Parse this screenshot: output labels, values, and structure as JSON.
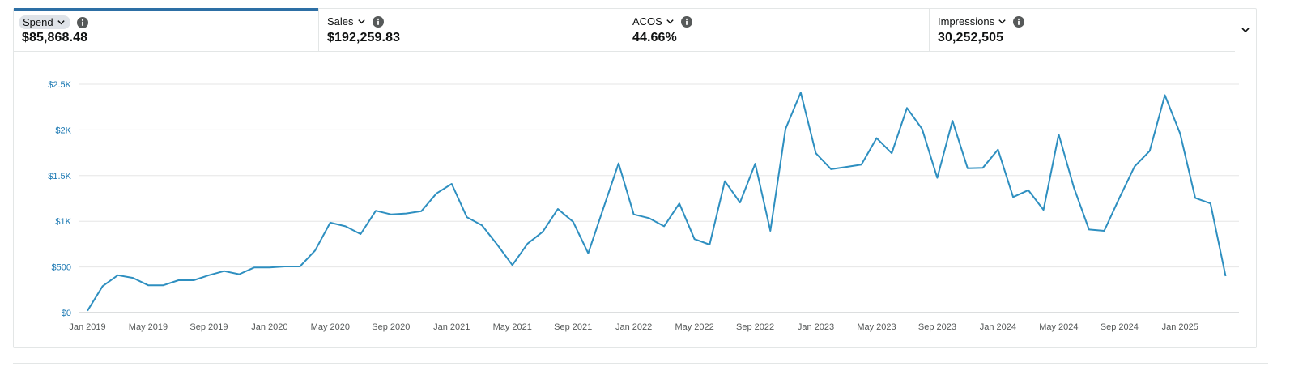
{
  "metrics": [
    {
      "label": "Spend",
      "value": "$85,868.48",
      "active": true
    },
    {
      "label": "Sales",
      "value": "$192,259.83",
      "active": false
    },
    {
      "label": "ACOS",
      "value": "44.66%",
      "active": false
    },
    {
      "label": "Impressions",
      "value": "30,252,505",
      "active": false
    }
  ],
  "icons": {
    "dropdown": "chevron-down-icon",
    "info": "info-icon",
    "expand": "chevron-down-icon"
  },
  "colors": {
    "line": "#2e8fc0",
    "active_tab": "#2d6fa5",
    "y_ticks": "#1c79b3",
    "grid": "#e6e6e6"
  },
  "chart_data": {
    "type": "line",
    "series": [
      {
        "x": [
          "2019-01",
          "2019-02",
          "2019-03",
          "2019-04",
          "2019-05",
          "2019-06",
          "2019-07",
          "2019-08",
          "2019-09",
          "2019-10",
          "2019-11",
          "2019-12",
          "2020-01",
          "2020-02",
          "2020-03",
          "2020-04",
          "2020-05",
          "2020-06",
          "2020-07",
          "2020-08",
          "2020-09",
          "2020-10",
          "2020-11",
          "2020-12",
          "2021-01",
          "2021-02",
          "2021-03",
          "2021-04",
          "2021-05",
          "2021-06",
          "2021-07",
          "2021-08",
          "2021-09",
          "2021-10",
          "2021-11",
          "2021-12",
          "2022-01",
          "2022-02",
          "2022-03",
          "2022-04",
          "2022-05",
          "2022-06",
          "2022-07",
          "2022-08",
          "2022-09",
          "2022-10",
          "2022-11",
          "2022-12",
          "2023-01",
          "2023-02",
          "2023-03",
          "2023-04",
          "2023-05",
          "2023-06",
          "2023-07",
          "2023-08",
          "2023-09",
          "2023-10",
          "2023-11",
          "2023-12",
          "2024-01",
          "2024-02",
          "2024-03",
          "2024-04",
          "2024-05",
          "2024-06",
          "2024-07",
          "2024-08",
          "2024-09",
          "2024-10",
          "2024-11",
          "2024-12",
          "2025-01",
          "2025-02",
          "2025-03",
          "2025-04"
        ],
        "values": [
          20,
          290,
          410,
          380,
          300,
          300,
          355,
          355,
          410,
          455,
          420,
          495,
          495,
          505,
          505,
          680,
          985,
          945,
          860,
          1115,
          1075,
          1085,
          1110,
          1305,
          1410,
          1045,
          955,
          745,
          520,
          755,
          885,
          1135,
          995,
          650,
          1145,
          1635,
          1075,
          1035,
          945,
          1195,
          805,
          745,
          1440,
          1205,
          1630,
          895,
          2010,
          2410,
          1745,
          1570,
          1595,
          1620,
          1910,
          1745,
          2240,
          2010,
          1475,
          2100,
          1580,
          1585,
          1785,
          1265,
          1340,
          1125,
          1950,
          1370,
          910,
          895,
          1255,
          1600,
          1770,
          2380,
          1960,
          1255,
          1195,
          400
        ]
      }
    ],
    "y_ticks": [
      "$0",
      "$500",
      "$1K",
      "$1.5K",
      "$2K",
      "$2.5K"
    ],
    "y_tick_values": [
      0,
      500,
      1000,
      1500,
      2000,
      2500
    ],
    "x_ticks": [
      "Jan 2019",
      "May 2019",
      "Sep 2019",
      "Jan 2020",
      "May 2020",
      "Sep 2020",
      "Jan 2021",
      "May 2021",
      "Sep 2021",
      "Jan 2022",
      "May 2022",
      "Sep 2022",
      "Jan 2023",
      "May 2023",
      "Sep 2023",
      "Jan 2024",
      "May 2024",
      "Sep 2024",
      "Jan 2025"
    ],
    "x_tick_positions": [
      "2019-01",
      "2019-05",
      "2019-09",
      "2020-01",
      "2020-05",
      "2020-09",
      "2021-01",
      "2021-05",
      "2021-09",
      "2022-01",
      "2022-05",
      "2022-09",
      "2023-01",
      "2023-05",
      "2023-09",
      "2024-01",
      "2024-05",
      "2024-09",
      "2025-01"
    ],
    "ylim": [
      0,
      2500
    ],
    "grid": true
  }
}
